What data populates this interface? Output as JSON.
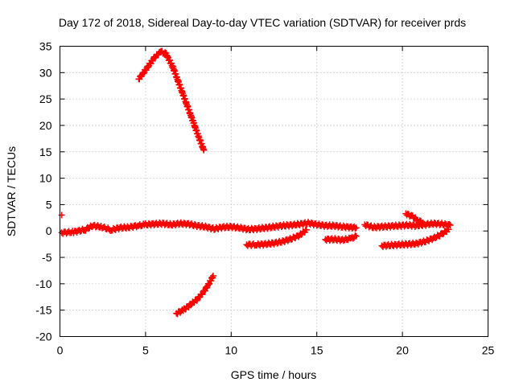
{
  "chart_data": {
    "type": "scatter",
    "title": "Day 172 of 2018, Sidereal Day-to-day VTEC variation (SDTVAR) for receiver prds",
    "xlabel": "GPS time / hours",
    "ylabel": "SDTVAR / TECUs",
    "xlim": [
      0,
      25
    ],
    "ylim": [
      -20,
      35
    ],
    "xticks": [
      0,
      5,
      10,
      15,
      20,
      25
    ],
    "yticks": [
      -20,
      -15,
      -10,
      -5,
      0,
      5,
      10,
      15,
      20,
      25,
      30,
      35
    ],
    "grid": true,
    "color": "#ff0000",
    "marker": "plus",
    "series": [
      {
        "points": [
          [
            0.1,
            3.0
          ]
        ]
      },
      {
        "points": [
          [
            0.1,
            -0.3
          ],
          [
            0.8,
            -0.2
          ],
          [
            1.5,
            0.3
          ],
          [
            1.9,
            1.0
          ],
          [
            2.4,
            0.8
          ],
          [
            3.0,
            0.2
          ],
          [
            3.5,
            0.6
          ],
          [
            4.0,
            0.7
          ],
          [
            4.6,
            1.0
          ],
          [
            5.0,
            1.2
          ],
          [
            5.5,
            1.3
          ],
          [
            6.0,
            1.4
          ],
          [
            6.5,
            1.2
          ],
          [
            7.0,
            1.4
          ],
          [
            7.5,
            1.3
          ],
          [
            8.0,
            1.0
          ],
          [
            8.5,
            0.8
          ],
          [
            9.0,
            0.4
          ],
          [
            9.5,
            0.7
          ],
          [
            10.0,
            0.8
          ],
          [
            10.5,
            0.6
          ],
          [
            11.0,
            0.3
          ],
          [
            11.5,
            0.4
          ],
          [
            12.0,
            0.6
          ],
          [
            12.5,
            0.8
          ],
          [
            13.0,
            1.0
          ],
          [
            13.5,
            1.1
          ],
          [
            14.0,
            1.3
          ],
          [
            14.5,
            1.5
          ],
          [
            15.0,
            1.2
          ],
          [
            15.5,
            1.0
          ],
          [
            16.0,
            1.0
          ],
          [
            16.5,
            0.8
          ],
          [
            17.0,
            0.7
          ],
          [
            17.3,
            0.6
          ]
        ]
      },
      {
        "points": [
          [
            4.6,
            28.8
          ],
          [
            5.0,
            30.5
          ],
          [
            5.5,
            32.8
          ],
          [
            5.9,
            34.0
          ],
          [
            6.2,
            33.5
          ],
          [
            6.6,
            31.0
          ],
          [
            7.0,
            27.5
          ],
          [
            7.4,
            24.0
          ],
          [
            7.8,
            20.5
          ],
          [
            8.1,
            17.8
          ],
          [
            8.4,
            15.3
          ]
        ]
      },
      {
        "points": [
          [
            6.8,
            -15.6
          ],
          [
            7.2,
            -15.0
          ],
          [
            7.6,
            -14.0
          ],
          [
            8.0,
            -13.0
          ],
          [
            8.4,
            -11.5
          ],
          [
            8.7,
            -10.0
          ],
          [
            8.95,
            -8.5
          ]
        ]
      },
      {
        "points": [
          [
            10.9,
            -2.6
          ],
          [
            11.5,
            -2.6
          ],
          [
            12.0,
            -2.5
          ],
          [
            12.5,
            -2.3
          ],
          [
            13.0,
            -2.0
          ],
          [
            13.5,
            -1.5
          ],
          [
            14.0,
            -0.8
          ],
          [
            14.4,
            0.2
          ]
        ]
      },
      {
        "points": [
          [
            15.5,
            -1.6
          ],
          [
            16.0,
            -1.6
          ],
          [
            16.5,
            -1.7
          ],
          [
            17.0,
            -1.4
          ],
          [
            17.3,
            -1.0
          ]
        ]
      },
      {
        "points": [
          [
            17.8,
            1.2
          ],
          [
            18.3,
            0.7
          ],
          [
            18.8,
            0.8
          ],
          [
            19.3,
            0.9
          ],
          [
            19.8,
            1.0
          ],
          [
            20.3,
            1.1
          ],
          [
            20.8,
            1.0
          ],
          [
            21.3,
            1.2
          ],
          [
            21.8,
            1.4
          ],
          [
            22.3,
            1.3
          ],
          [
            22.8,
            1.1
          ]
        ]
      },
      {
        "points": [
          [
            18.8,
            -2.8
          ],
          [
            19.3,
            -2.7
          ],
          [
            19.8,
            -2.6
          ],
          [
            20.3,
            -2.5
          ],
          [
            20.8,
            -2.4
          ],
          [
            21.3,
            -2.0
          ],
          [
            21.8,
            -1.4
          ],
          [
            22.3,
            -0.6
          ],
          [
            22.7,
            0.3
          ]
        ]
      },
      {
        "points": [
          [
            20.2,
            3.3
          ],
          [
            20.6,
            2.7
          ],
          [
            20.9,
            2.0
          ],
          [
            21.2,
            1.6
          ]
        ]
      }
    ]
  }
}
